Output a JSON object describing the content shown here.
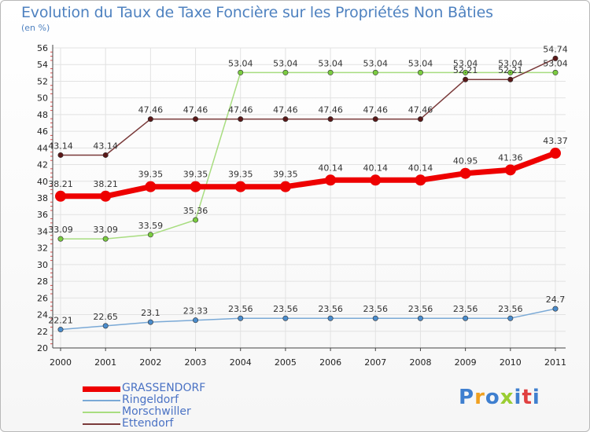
{
  "title": "Evolution du Taux de Taxe Foncière sur les Propriétés Non Bâties",
  "unit": "(en %)",
  "logo": {
    "text": "Proxiti",
    "letters": [
      "P",
      "r",
      "o",
      "x",
      "i",
      "t",
      "i"
    ],
    "colors": [
      "#3f7fcf",
      "#f0a020",
      "#3f7fcf",
      "#9acd32",
      "#3f7fcf",
      "#e04040",
      "#3f7fcf"
    ]
  },
  "chart_data": {
    "type": "line",
    "title": "Evolution du Taux de Taxe Foncière sur les Propriétés Non Bâties",
    "ylabel": "(en %)",
    "xlabel": "",
    "ylim": [
      20,
      56
    ],
    "yticks": [
      20,
      22,
      24,
      26,
      28,
      30,
      32,
      34,
      36,
      38,
      40,
      42,
      44,
      46,
      48,
      50,
      52,
      54,
      56
    ],
    "x": [
      "2000",
      "2001",
      "2002",
      "2003",
      "2004",
      "2005",
      "2006",
      "2007",
      "2008",
      "2009",
      "2010",
      "2011"
    ],
    "grid": true,
    "legend": "bottom-left",
    "series": [
      {
        "name": "GRASSENDORF",
        "color": "#ee0000",
        "marker": "#ee0000",
        "width": 7,
        "emphasis": true,
        "values": [
          38.21,
          38.21,
          39.35,
          39.35,
          39.35,
          39.35,
          40.14,
          40.14,
          40.14,
          40.95,
          41.36,
          43.37
        ],
        "labels": [
          "38.21",
          "38.21",
          "39.35",
          "39.35",
          "39.35",
          "39.35",
          "40.14",
          "40.14",
          "40.14",
          "40.95",
          "41.36",
          "43.37"
        ]
      },
      {
        "name": "Ringeldorf",
        "color": "#7aa9d6",
        "marker": "#4a8ccc",
        "width": 1.5,
        "emphasis": false,
        "values": [
          22.21,
          22.65,
          23.1,
          23.33,
          23.56,
          23.56,
          23.56,
          23.56,
          23.56,
          23.56,
          23.56,
          24.7
        ],
        "labels": [
          "22.21",
          "22.65",
          "23.1",
          "23.33",
          "23.56",
          "23.56",
          "23.56",
          "23.56",
          "23.56",
          "23.56",
          "23.56",
          "24.7"
        ]
      },
      {
        "name": "Morschwiller",
        "color": "#a8dd80",
        "marker": "#7acc40",
        "width": 1.5,
        "emphasis": false,
        "values": [
          33.09,
          33.09,
          33.59,
          35.36,
          53.04,
          53.04,
          53.04,
          53.04,
          53.04,
          53.04,
          53.04,
          53.04
        ],
        "labels": [
          "33.09",
          "33.09",
          "33.59",
          "35.36",
          "53.04",
          "53.04",
          "53.04",
          "53.04",
          "53.04",
          "53.04",
          "53.04",
          "53.04"
        ]
      },
      {
        "name": "Ettendorf",
        "color": "#7a3a3a",
        "marker": "#5a1818",
        "width": 1.5,
        "emphasis": false,
        "values": [
          43.14,
          43.14,
          47.46,
          47.46,
          47.46,
          47.46,
          47.46,
          47.46,
          47.46,
          52.21,
          52.21,
          54.74
        ],
        "labels": [
          "43.14",
          "43.14",
          "47.46",
          "47.46",
          "47.46",
          "47.46",
          "47.46",
          "47.46",
          "47.46",
          "52.21",
          "52.21",
          "54.74"
        ]
      }
    ]
  }
}
